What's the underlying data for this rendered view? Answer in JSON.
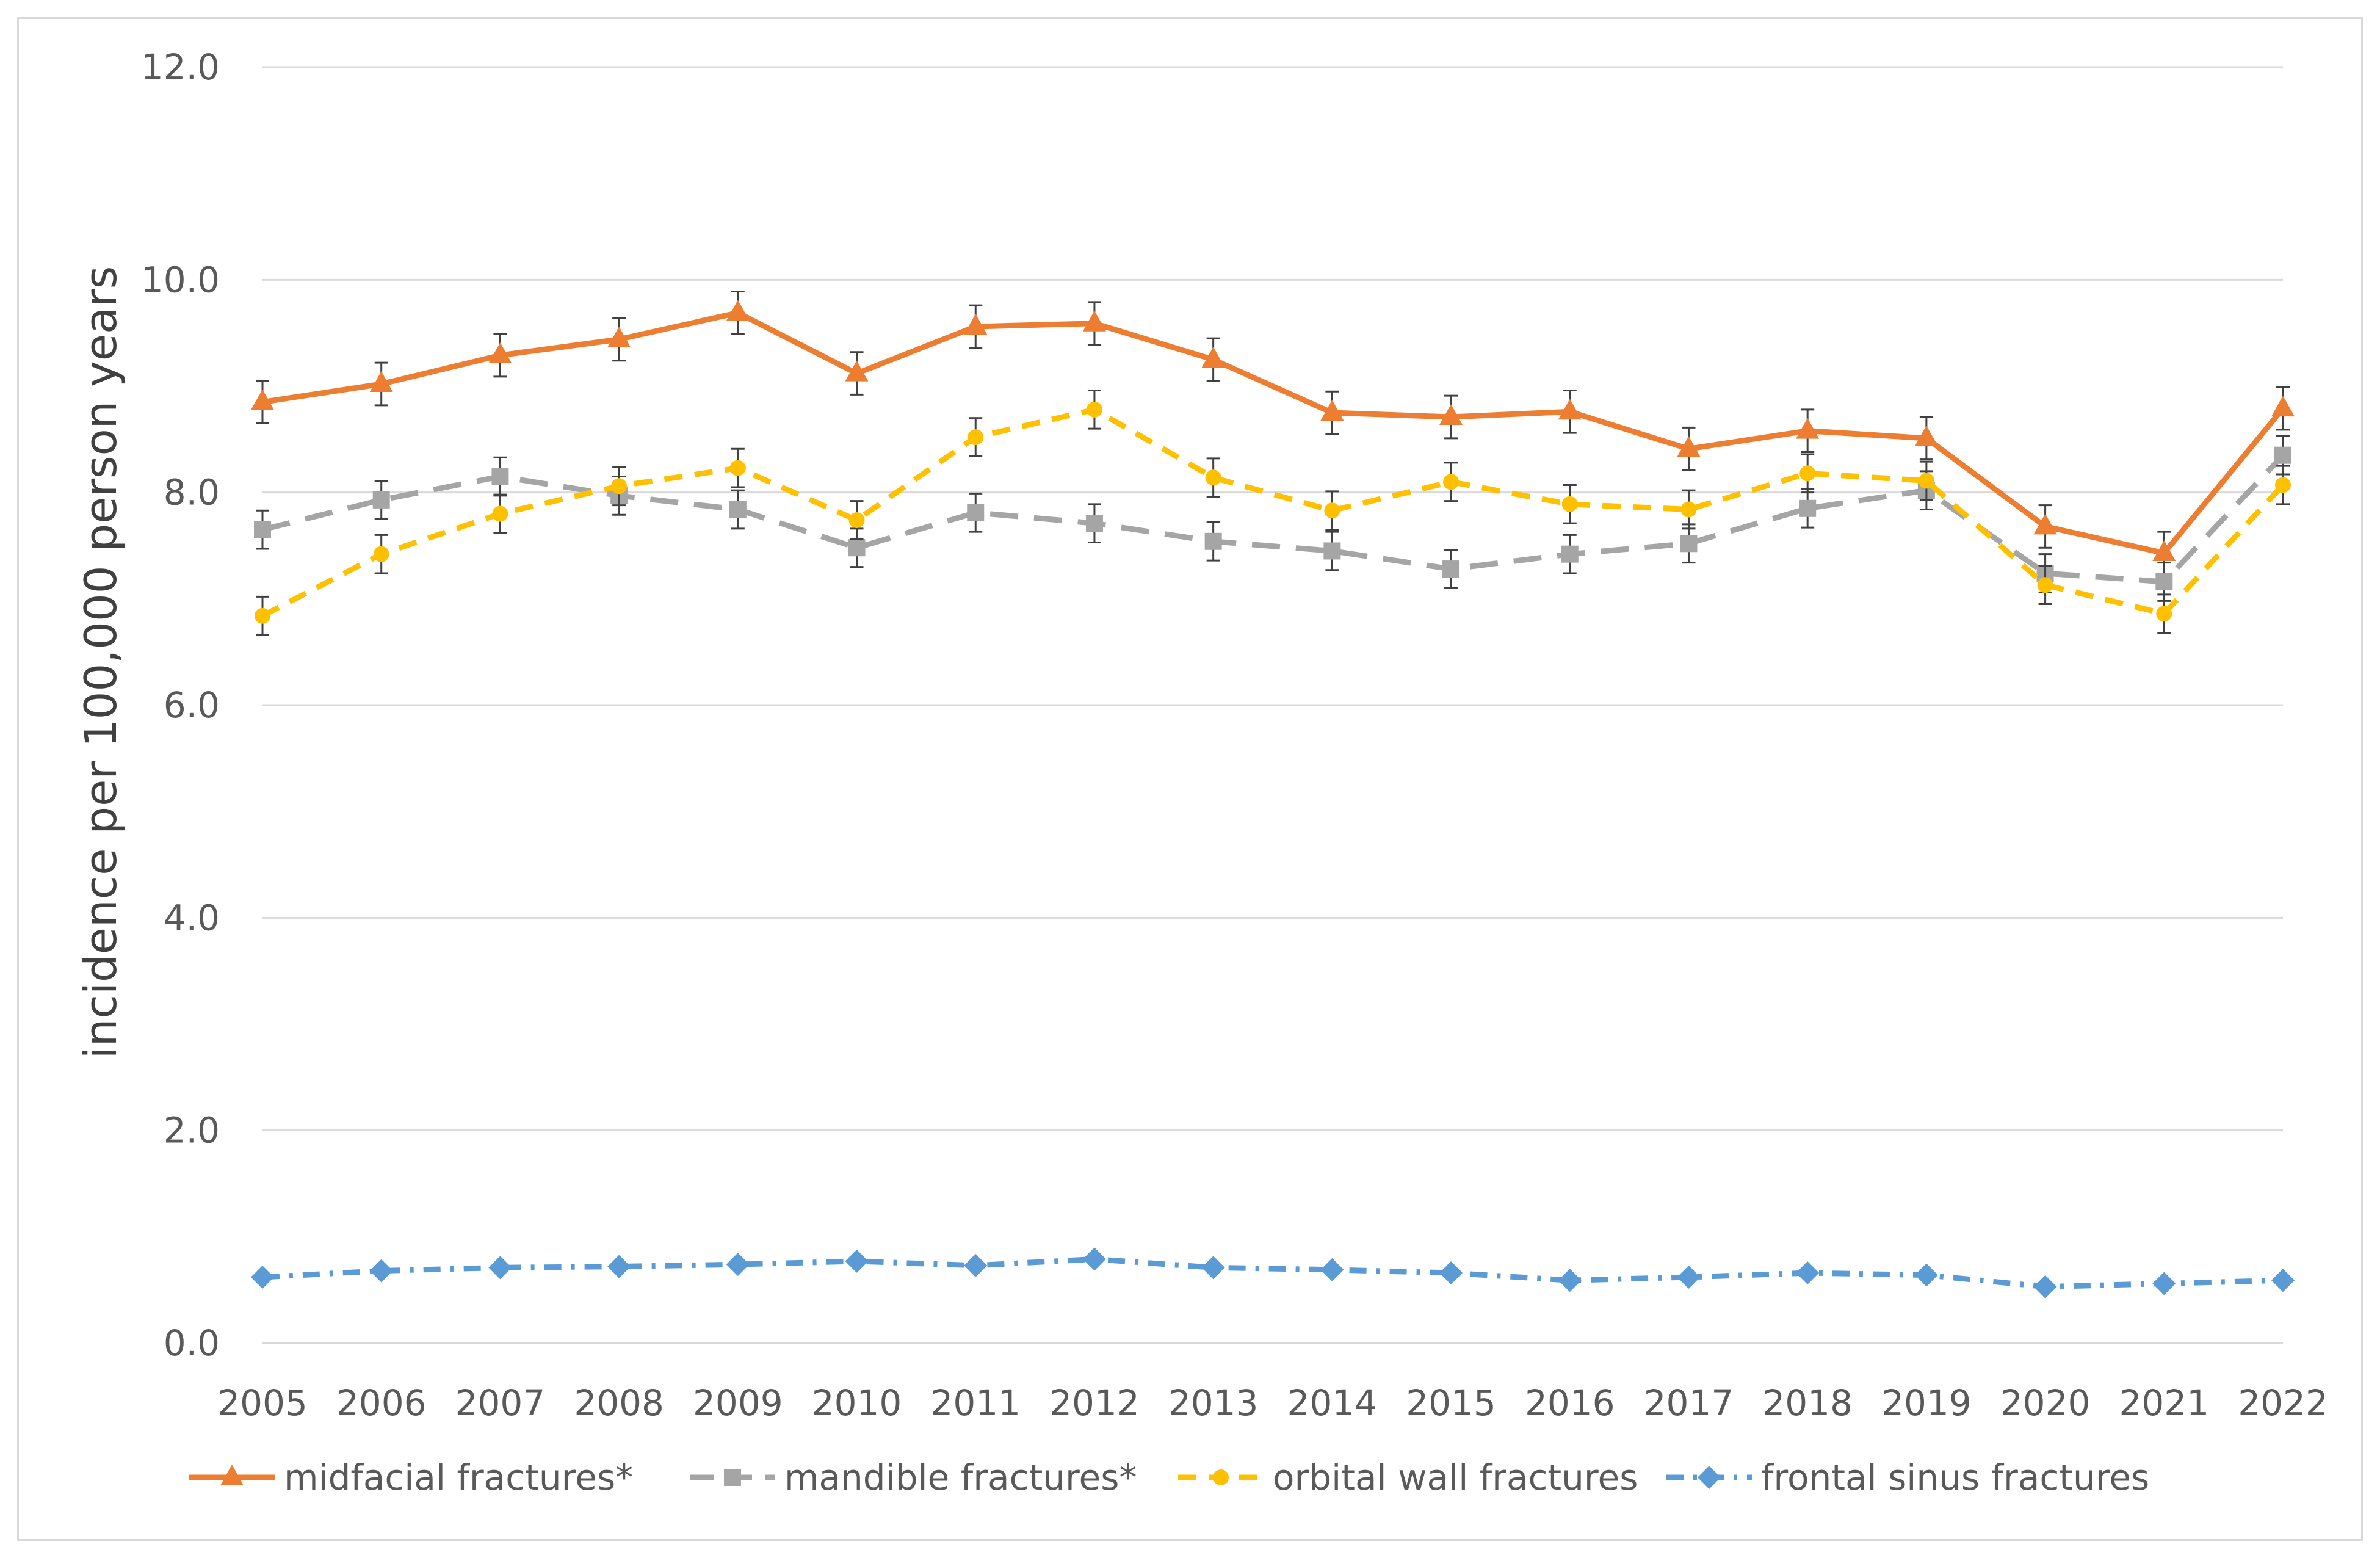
{
  "chart_data": {
    "type": "line",
    "title": "",
    "xlabel": "",
    "ylabel": "incidence per 100,000 person years",
    "ylim": [
      0,
      12
    ],
    "yticks": [
      "0.0",
      "2.0",
      "4.0",
      "6.0",
      "8.0",
      "10.0",
      "12.0"
    ],
    "grid": true,
    "legend_position": "bottom",
    "categories": [
      "2005",
      "2006",
      "2007",
      "2008",
      "2009",
      "2010",
      "2011",
      "2012",
      "2013",
      "2014",
      "2015",
      "2016",
      "2017",
      "2018",
      "2019",
      "2020",
      "2021",
      "2022"
    ],
    "series": [
      {
        "name": "midfacial fractures*",
        "color": "#ed7d31",
        "dash": "solid",
        "marker": "triangle",
        "error": 0.2,
        "values": [
          8.85,
          9.02,
          9.29,
          9.44,
          9.69,
          9.12,
          9.56,
          9.59,
          9.25,
          8.75,
          8.71,
          8.76,
          8.41,
          8.58,
          8.51,
          7.68,
          7.43,
          8.79
        ]
      },
      {
        "name": "mandible fractures*",
        "color": "#a5a5a5",
        "dash": "long-dash",
        "marker": "square",
        "error": 0.18,
        "values": [
          7.65,
          7.93,
          8.15,
          7.97,
          7.84,
          7.48,
          7.81,
          7.71,
          7.54,
          7.45,
          7.28,
          7.42,
          7.52,
          7.85,
          8.02,
          7.24,
          7.16,
          8.35
        ]
      },
      {
        "name": "orbital wall fractures",
        "color": "#ffc000",
        "dash": "dash",
        "marker": "circle",
        "error": 0.18,
        "values": [
          6.84,
          7.42,
          7.8,
          8.06,
          8.23,
          7.74,
          8.52,
          8.78,
          8.14,
          7.83,
          8.1,
          7.89,
          7.84,
          8.18,
          8.11,
          7.13,
          6.86,
          8.07
        ]
      },
      {
        "name": "frontal sinus fractures",
        "color": "#5b9bd5",
        "dash": "dash-dot",
        "marker": "diamond",
        "error": 0,
        "values": [
          0.62,
          0.68,
          0.71,
          0.72,
          0.74,
          0.77,
          0.73,
          0.79,
          0.71,
          0.69,
          0.66,
          0.59,
          0.62,
          0.66,
          0.64,
          0.53,
          0.56,
          0.59
        ]
      }
    ]
  }
}
